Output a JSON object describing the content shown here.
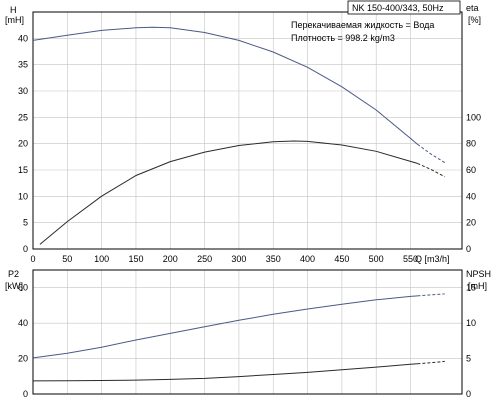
{
  "chart_data": {
    "type": "line",
    "pump_title": "NK 150-400/343, 50Hz",
    "fluid_line": "Перекачиваемая жидкость = Вода",
    "density_line": "Плотность = 998.2 kg/m3",
    "x_axis": {
      "label": "Q [m3/h]",
      "range": [
        0,
        625
      ],
      "ticks": [
        0,
        50,
        100,
        150,
        200,
        250,
        300,
        350,
        400,
        450,
        500,
        550
      ]
    },
    "upper_plot": {
      "left_axis": {
        "label_line1": "H",
        "label_line2": "[mH]",
        "range": [
          0,
          45
        ],
        "ticks": [
          0,
          5,
          10,
          15,
          20,
          25,
          30,
          35,
          40
        ]
      },
      "right_axis": {
        "label_line1": "eta",
        "label_line2": "[%]",
        "range": [
          0,
          180
        ],
        "ticks": [
          0,
          20,
          40,
          60,
          80,
          100
        ]
      },
      "grid": true
    },
    "lower_plot": {
      "left_axis": {
        "label_line1": "P2",
        "label_line2": "[kW]",
        "range": [
          0,
          70
        ],
        "ticks": [
          0,
          20,
          40,
          60
        ]
      },
      "right_axis": {
        "label_line1": "NPSH",
        "label_line2": "[mH]",
        "range": [
          0,
          17.5
        ],
        "ticks": [
          0,
          5,
          10,
          15
        ]
      },
      "grid": true
    },
    "series": [
      {
        "key": "head",
        "plot": "upper",
        "axis": "left",
        "color": "#4a5a86",
        "x": [
          0,
          50,
          100,
          150,
          175,
          200,
          250,
          300,
          350,
          400,
          450,
          500,
          550,
          560,
          580,
          600
        ],
        "y": [
          39.6,
          40.6,
          41.5,
          42.0,
          42.1,
          42.0,
          41.1,
          39.6,
          37.4,
          34.5,
          30.8,
          26.4,
          21.0,
          19.9,
          18.0,
          16.4
        ],
        "dashed_from": 560
      },
      {
        "key": "efficiency",
        "plot": "upper",
        "axis": "right",
        "color": "#2a2a2a",
        "x": [
          10,
          50,
          100,
          150,
          200,
          250,
          300,
          350,
          380,
          400,
          450,
          500,
          550,
          560,
          580,
          600
        ],
        "y": [
          3.5,
          20.8,
          40.1,
          55.8,
          66.4,
          73.6,
          78.6,
          81.4,
          82.0,
          81.7,
          79.0,
          74.2,
          66.5,
          65.0,
          60.4,
          54.8
        ],
        "dashed_from": 560
      },
      {
        "key": "power_p2",
        "plot": "lower",
        "axis": "left",
        "color": "#4a5a86",
        "x": [
          0,
          50,
          100,
          150,
          200,
          250,
          300,
          350,
          400,
          450,
          500,
          550,
          560,
          580,
          600
        ],
        "y": [
          20.4,
          23.0,
          26.4,
          30.5,
          34.2,
          38.0,
          41.6,
          45.0,
          48.0,
          50.7,
          53.2,
          55.1,
          55.4,
          56.0,
          56.5
        ],
        "dashed_from": 560
      },
      {
        "key": "npsh",
        "plot": "lower",
        "axis": "right",
        "color": "#2a2a2a",
        "x": [
          0,
          50,
          100,
          150,
          200,
          250,
          300,
          350,
          400,
          450,
          500,
          550,
          560,
          580,
          600
        ],
        "y": [
          1.85,
          1.87,
          1.9,
          1.96,
          2.06,
          2.2,
          2.45,
          2.75,
          3.05,
          3.42,
          3.8,
          4.2,
          4.27,
          4.42,
          4.6
        ],
        "dashed_from": 560
      }
    ]
  }
}
